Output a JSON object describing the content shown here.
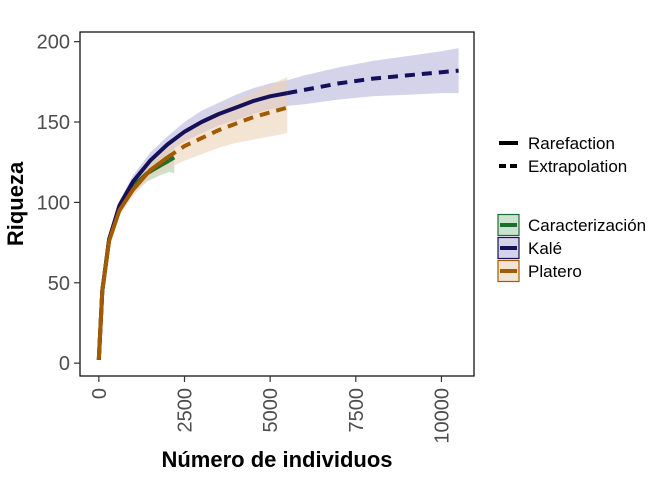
{
  "chart_data": {
    "type": "line",
    "xlabel": "Número de individuos",
    "ylabel": "Riqueza",
    "xlim": [
      -550,
      10950
    ],
    "ylim": [
      -8,
      206
    ],
    "x_ticks": [
      0,
      2500,
      5000,
      7500,
      10000
    ],
    "y_ticks": [
      0,
      50,
      100,
      150,
      200
    ],
    "grid": false,
    "legend_position": "right",
    "method_legend": [
      {
        "label": "Rarefaction",
        "style": "solid"
      },
      {
        "label": "Extrapolation",
        "style": "dashed"
      }
    ],
    "series": [
      {
        "name": "Caracterización",
        "color": "#1b6f2e",
        "fill": "#a9cfae",
        "rarefaction": {
          "x": [
            0,
            100,
            300,
            600,
            1000,
            1400,
            1800,
            2050
          ],
          "y": [
            2,
            45,
            77,
            96,
            110,
            118,
            123,
            126
          ],
          "lower": [
            2,
            44,
            75,
            93,
            106,
            113,
            117,
            119
          ],
          "upper": [
            2,
            46,
            79,
            99,
            114,
            123,
            129,
            133
          ]
        },
        "extrapolation": {
          "x": [
            2050,
            2200
          ],
          "y": [
            126,
            128
          ],
          "lower": [
            119,
            118
          ],
          "upper": [
            133,
            136
          ]
        }
      },
      {
        "name": "Kalé",
        "color": "#15105a",
        "fill": "#b9b6dc",
        "rarefaction": {
          "x": [
            0,
            100,
            300,
            600,
            1000,
            1500,
            2000,
            2500,
            3000,
            3500,
            4000,
            4500,
            5000,
            5500
          ],
          "y": [
            2,
            45,
            77,
            98,
            113,
            126,
            136,
            144,
            150,
            155,
            159,
            163,
            166,
            168
          ],
          "lower": [
            2,
            44,
            75,
            95,
            109,
            121,
            131,
            138,
            143,
            148,
            151,
            155,
            158,
            160
          ],
          "upper": [
            2,
            46,
            79,
            101,
            117,
            131,
            141,
            150,
            157,
            162,
            167,
            171,
            174,
            176
          ]
        },
        "extrapolation": {
          "x": [
            5500,
            6000,
            7000,
            8000,
            9000,
            10000,
            10500
          ],
          "y": [
            168,
            170,
            174,
            177,
            179,
            181,
            182
          ],
          "lower": [
            160,
            161,
            164,
            166,
            167,
            168,
            168
          ],
          "upper": [
            176,
            179,
            184,
            188,
            191,
            194,
            196
          ]
        }
      },
      {
        "name": "Platero",
        "color": "#a35a00",
        "fill": "#ecd2b6",
        "rarefaction": {
          "x": [
            0,
            100,
            300,
            600,
            1000,
            1500,
            2000
          ],
          "y": [
            2,
            45,
            76,
            95,
            108,
            120,
            128
          ],
          "lower": [
            2,
            44,
            74,
            92,
            104,
            115,
            121
          ],
          "upper": [
            2,
            46,
            78,
            98,
            112,
            125,
            135
          ]
        },
        "extrapolation": {
          "x": [
            2000,
            2500,
            3000,
            3500,
            4000,
            4500,
            5000,
            5500
          ],
          "y": [
            128,
            135,
            140,
            145,
            149,
            153,
            156,
            159
          ],
          "lower": [
            121,
            126,
            130,
            134,
            137,
            139,
            141,
            143
          ],
          "upper": [
            135,
            144,
            151,
            157,
            163,
            168,
            173,
            178
          ]
        }
      }
    ]
  }
}
